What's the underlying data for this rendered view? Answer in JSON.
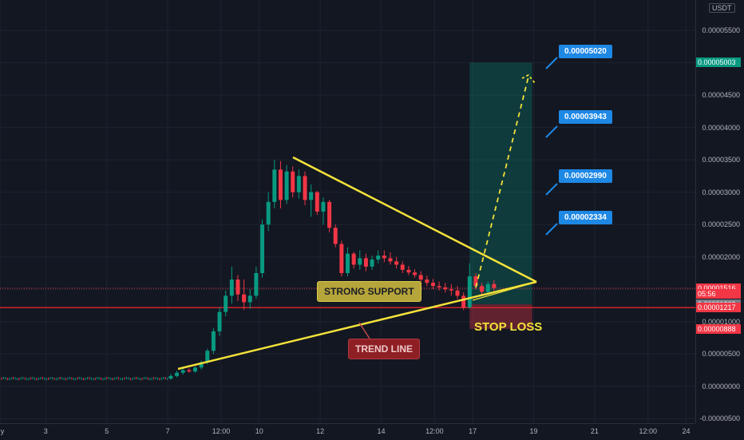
{
  "chart_data": {
    "type": "candlestick",
    "currency": "USDT",
    "y_ticks": [
      "0.00005500",
      "0.00005000",
      "0.00004500",
      "0.00004000",
      "0.00003500",
      "0.00003000",
      "0.00002500",
      "0.00002000",
      "0.00001500",
      "0.00001000",
      "0.00000500",
      "0.00000000",
      "-0.00000500"
    ],
    "y_tick_values": [
      5.5e-05,
      5e-05,
      4.5e-05,
      4e-05,
      3.5e-05,
      3e-05,
      2.5e-05,
      2e-05,
      1.5e-05,
      1e-05,
      5e-06,
      0,
      -5e-06
    ],
    "ylim": [
      -5.7e-06,
      5.97e-05
    ],
    "x_ticks": [
      "y",
      "3",
      "5",
      "7",
      "12:00",
      "10",
      "12",
      "14",
      "12:00",
      "17",
      "19",
      "21",
      "12:00",
      "24"
    ],
    "x_tick_positions": [
      1.5,
      3,
      5,
      7,
      8.75,
      10,
      12,
      14,
      15.75,
      17,
      19,
      21,
      22.75,
      24
    ],
    "xlim": [
      1.5,
      24.3
    ],
    "price_tags": [
      {
        "label": "0.00005003",
        "value": 5.003e-05,
        "color": "#089981"
      },
      {
        "label": "0.00001516",
        "value": 1.516e-05,
        "color": "#f23645"
      },
      {
        "label": "05:56",
        "value": 1.425e-05,
        "color": "#f23645"
      },
      {
        "label": "0.00001269",
        "value": 1.269e-05,
        "color": "#787b86"
      },
      {
        "label": "0.00001217",
        "value": 1.217e-05,
        "color": "#f23645"
      },
      {
        "label": "0.00000888",
        "value": 8.88e-06,
        "color": "#f23645"
      }
    ],
    "targets": [
      "0.00005020",
      "0.00003943",
      "0.00002990",
      "0.00002334"
    ],
    "annotations": {
      "support": "STRONG SUPPORT",
      "trend": "TREND LINE",
      "stop": "STOP LOSS"
    },
    "candles": [
      {
        "t": 7.1,
        "o": 1.2e-06,
        "h": 1.9e-06,
        "l": 1e-06,
        "c": 1.6e-06
      },
      {
        "t": 7.3,
        "o": 1.6e-06,
        "h": 2.4e-06,
        "l": 1.4e-06,
        "c": 2.1e-06
      },
      {
        "t": 7.5,
        "o": 2.1e-06,
        "h": 2.9e-06,
        "l": 1.8e-06,
        "c": 2.5e-06
      },
      {
        "t": 7.7,
        "o": 2.5e-06,
        "h": 2.8e-06,
        "l": 2.1e-06,
        "c": 2.3e-06
      },
      {
        "t": 7.9,
        "o": 2.3e-06,
        "h": 3.1e-06,
        "l": 2.1e-06,
        "c": 2.9e-06
      },
      {
        "t": 8.1,
        "o": 2.9e-06,
        "h": 4e-06,
        "l": 2.6e-06,
        "c": 3.7e-06
      },
      {
        "t": 8.3,
        "o": 3.7e-06,
        "h": 5.8e-06,
        "l": 3.4e-06,
        "c": 5.5e-06
      },
      {
        "t": 8.5,
        "o": 5.5e-06,
        "h": 9e-06,
        "l": 5e-06,
        "c": 8.5e-06
      },
      {
        "t": 8.7,
        "o": 8.5e-06,
        "h": 1.22e-05,
        "l": 7.8e-06,
        "c": 1.15e-05
      },
      {
        "t": 8.9,
        "o": 1.15e-05,
        "h": 1.48e-05,
        "l": 1.08e-05,
        "c": 1.4e-05
      },
      {
        "t": 9.1,
        "o": 1.4e-05,
        "h": 1.85e-05,
        "l": 1.28e-05,
        "c": 1.65e-05
      },
      {
        "t": 9.3,
        "o": 1.65e-05,
        "h": 1.72e-05,
        "l": 1.32e-05,
        "c": 1.42e-05
      },
      {
        "t": 9.5,
        "o": 1.42e-05,
        "h": 1.65e-05,
        "l": 1.18e-05,
        "c": 1.3e-05
      },
      {
        "t": 9.7,
        "o": 1.3e-05,
        "h": 1.5e-05,
        "l": 1.2e-05,
        "c": 1.4e-05
      },
      {
        "t": 9.9,
        "o": 1.4e-05,
        "h": 1.85e-05,
        "l": 1.35e-05,
        "c": 1.75e-05
      },
      {
        "t": 10.1,
        "o": 1.75e-05,
        "h": 2.58e-05,
        "l": 1.68e-05,
        "c": 2.5e-05
      },
      {
        "t": 10.3,
        "o": 2.5e-05,
        "h": 3e-05,
        "l": 2.4e-05,
        "c": 2.85e-05
      },
      {
        "t": 10.5,
        "o": 2.85e-05,
        "h": 3.5e-05,
        "l": 2.75e-05,
        "c": 3.35e-05
      },
      {
        "t": 10.7,
        "o": 3.35e-05,
        "h": 3.48e-05,
        "l": 2.75e-05,
        "c": 2.88e-05
      },
      {
        "t": 10.9,
        "o": 2.88e-05,
        "h": 3.42e-05,
        "l": 2.82e-05,
        "c": 3.32e-05
      },
      {
        "t": 11.1,
        "o": 3.32e-05,
        "h": 3.4e-05,
        "l": 2.92e-05,
        "c": 3e-05
      },
      {
        "t": 11.3,
        "o": 3e-05,
        "h": 3.35e-05,
        "l": 2.9e-05,
        "c": 3.25e-05
      },
      {
        "t": 11.5,
        "o": 3.25e-05,
        "h": 3.32e-05,
        "l": 2.8e-05,
        "c": 2.88e-05
      },
      {
        "t": 11.7,
        "o": 2.88e-05,
        "h": 3.12e-05,
        "l": 2.62e-05,
        "c": 3e-05
      },
      {
        "t": 11.9,
        "o": 3e-05,
        "h": 3.02e-05,
        "l": 2.65e-05,
        "c": 2.7e-05
      },
      {
        "t": 12.1,
        "o": 2.7e-05,
        "h": 2.92e-05,
        "l": 2.5e-05,
        "c": 2.85e-05
      },
      {
        "t": 12.3,
        "o": 2.85e-05,
        "h": 2.88e-05,
        "l": 2.38e-05,
        "c": 2.45e-05
      },
      {
        "t": 12.5,
        "o": 2.45e-05,
        "h": 2.5e-05,
        "l": 2.15e-05,
        "c": 2.2e-05
      },
      {
        "t": 12.7,
        "o": 2.2e-05,
        "h": 2.25e-05,
        "l": 1.7e-05,
        "c": 1.75e-05
      },
      {
        "t": 12.9,
        "o": 1.75e-05,
        "h": 2.15e-05,
        "l": 1.7e-05,
        "c": 2.05e-05
      },
      {
        "t": 13.1,
        "o": 2.05e-05,
        "h": 2.08e-05,
        "l": 1.82e-05,
        "c": 1.88e-05
      },
      {
        "t": 13.3,
        "o": 1.88e-05,
        "h": 2.1e-05,
        "l": 1.8e-05,
        "c": 1.98e-05
      },
      {
        "t": 13.5,
        "o": 1.98e-05,
        "h": 2.05e-05,
        "l": 1.78e-05,
        "c": 1.85e-05
      },
      {
        "t": 13.7,
        "o": 1.85e-05,
        "h": 2.02e-05,
        "l": 1.8e-05,
        "c": 1.96e-05
      },
      {
        "t": 13.9,
        "o": 1.96e-05,
        "h": 2.1e-05,
        "l": 1.9e-05,
        "c": 2.02e-05
      },
      {
        "t": 14.1,
        "o": 2.02e-05,
        "h": 2.1e-05,
        "l": 1.92e-05,
        "c": 1.98e-05
      },
      {
        "t": 14.3,
        "o": 1.98e-05,
        "h": 2.07e-05,
        "l": 1.88e-05,
        "c": 1.93e-05
      },
      {
        "t": 14.5,
        "o": 1.93e-05,
        "h": 2e-05,
        "l": 1.82e-05,
        "c": 1.88e-05
      },
      {
        "t": 14.7,
        "o": 1.88e-05,
        "h": 1.93e-05,
        "l": 1.75e-05,
        "c": 1.8e-05
      },
      {
        "t": 14.9,
        "o": 1.8e-05,
        "h": 1.86e-05,
        "l": 1.72e-05,
        "c": 1.76e-05
      },
      {
        "t": 15.1,
        "o": 1.76e-05,
        "h": 1.81e-05,
        "l": 1.68e-05,
        "c": 1.72e-05
      },
      {
        "t": 15.3,
        "o": 1.72e-05,
        "h": 1.78e-05,
        "l": 1.6e-05,
        "c": 1.65e-05
      },
      {
        "t": 15.5,
        "o": 1.65e-05,
        "h": 1.71e-05,
        "l": 1.55e-05,
        "c": 1.6e-05
      },
      {
        "t": 15.7,
        "o": 1.6e-05,
        "h": 1.66e-05,
        "l": 1.5e-05,
        "c": 1.55e-05
      },
      {
        "t": 15.9,
        "o": 1.55e-05,
        "h": 1.62e-05,
        "l": 1.48e-05,
        "c": 1.53e-05
      },
      {
        "t": 16.1,
        "o": 1.53e-05,
        "h": 1.6e-05,
        "l": 1.45e-05,
        "c": 1.5e-05
      },
      {
        "t": 16.3,
        "o": 1.5e-05,
        "h": 1.58e-05,
        "l": 1.4e-05,
        "c": 1.48e-05
      },
      {
        "t": 16.5,
        "o": 1.48e-05,
        "h": 1.55e-05,
        "l": 1.35e-05,
        "c": 1.4e-05
      },
      {
        "t": 16.7,
        "o": 1.4e-05,
        "h": 1.45e-05,
        "l": 1.18e-05,
        "c": 1.22e-05
      },
      {
        "t": 16.9,
        "o": 1.22e-05,
        "h": 1.9e-05,
        "l": 1.2e-05,
        "c": 1.7e-05
      },
      {
        "t": 17.1,
        "o": 1.7e-05,
        "h": 1.75e-05,
        "l": 1.5e-05,
        "c": 1.55e-05
      },
      {
        "t": 17.3,
        "o": 1.55e-05,
        "h": 1.6e-05,
        "l": 1.4e-05,
        "c": 1.46e-05
      },
      {
        "t": 17.5,
        "o": 1.46e-05,
        "h": 1.62e-05,
        "l": 1.44e-05,
        "c": 1.58e-05
      },
      {
        "t": 17.7,
        "o": 1.58e-05,
        "h": 1.64e-05,
        "l": 1.48e-05,
        "c": 1.52e-05
      }
    ]
  }
}
